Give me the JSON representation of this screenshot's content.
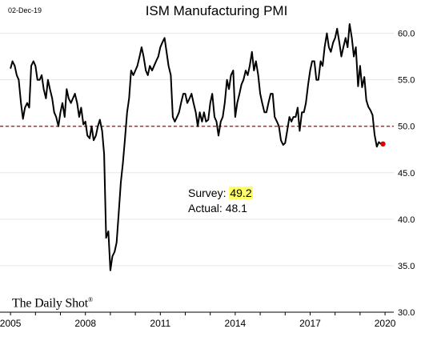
{
  "header": {
    "date": "02-Dec-19",
    "title": "ISM Manufacturing PMI"
  },
  "brand": {
    "name": "The Daily Shot",
    "mark": "®"
  },
  "annotation": {
    "survey_label": "Survey:",
    "survey_value": "49.2",
    "actual_label": "Actual:",
    "actual_value": "48.1"
  },
  "colors": {
    "line": "#000000",
    "threshold": "#c00000",
    "actual_dot": "#e00000",
    "highlight": "#ffff66"
  },
  "chart_data": {
    "type": "line",
    "title": "ISM Manufacturing PMI",
    "xlabel": "",
    "ylabel": "",
    "xlim": [
      2004.9,
      2020.35
    ],
    "ylim": [
      30,
      61
    ],
    "y_ticks": [
      "30.0",
      "35.0",
      "40.0",
      "45.0",
      "50.0",
      "55.0",
      "60.0"
    ],
    "x_ticks": [
      "2005",
      "2008",
      "2011",
      "2014",
      "2017",
      "2020"
    ],
    "reference_line": {
      "y": 50,
      "style": "dashed"
    },
    "actual_point": {
      "x": 2019.917,
      "y": 48.1
    },
    "series": [
      {
        "x": [
          2005.0,
          2005.08,
          2005.17,
          2005.25,
          2005.33,
          2005.42,
          2005.5,
          2005.58,
          2005.67,
          2005.75,
          2005.83,
          2005.92,
          2006.0,
          2006.08,
          2006.17,
          2006.25,
          2006.33,
          2006.42,
          2006.5,
          2006.58,
          2006.67,
          2006.75,
          2006.83,
          2006.92,
          2007.0,
          2007.08,
          2007.17,
          2007.25,
          2007.33,
          2007.42,
          2007.5,
          2007.58,
          2007.67,
          2007.75,
          2007.83,
          2007.92,
          2008.0,
          2008.08,
          2008.17,
          2008.25,
          2008.33,
          2008.42,
          2008.5,
          2008.58,
          2008.67,
          2008.75,
          2008.83,
          2008.92,
          2009.0,
          2009.08,
          2009.17,
          2009.25,
          2009.33,
          2009.42,
          2009.5,
          2009.58,
          2009.67,
          2009.75,
          2009.83,
          2009.92,
          2010.0,
          2010.08,
          2010.17,
          2010.25,
          2010.33,
          2010.42,
          2010.5,
          2010.58,
          2010.67,
          2010.75,
          2010.83,
          2010.92,
          2011.0,
          2011.08,
          2011.17,
          2011.25,
          2011.33,
          2011.42,
          2011.5,
          2011.58,
          2011.67,
          2011.75,
          2011.83,
          2011.92,
          2012.0,
          2012.08,
          2012.17,
          2012.25,
          2012.33,
          2012.42,
          2012.5,
          2012.58,
          2012.67,
          2012.75,
          2012.83,
          2012.92,
          2013.0,
          2013.08,
          2013.17,
          2013.25,
          2013.33,
          2013.42,
          2013.5,
          2013.58,
          2013.67,
          2013.75,
          2013.83,
          2013.92,
          2014.0,
          2014.08,
          2014.17,
          2014.25,
          2014.33,
          2014.42,
          2014.5,
          2014.58,
          2014.67,
          2014.75,
          2014.83,
          2014.92,
          2015.0,
          2015.08,
          2015.17,
          2015.25,
          2015.33,
          2015.42,
          2015.5,
          2015.58,
          2015.67,
          2015.75,
          2015.83,
          2015.92,
          2016.0,
          2016.08,
          2016.17,
          2016.25,
          2016.33,
          2016.42,
          2016.5,
          2016.58,
          2016.67,
          2016.75,
          2016.83,
          2016.92,
          2017.0,
          2017.08,
          2017.17,
          2017.25,
          2017.33,
          2017.42,
          2017.5,
          2017.58,
          2017.67,
          2017.75,
          2017.83,
          2017.92,
          2018.0,
          2018.08,
          2018.17,
          2018.25,
          2018.33,
          2018.42,
          2018.5,
          2018.58,
          2018.67,
          2018.75,
          2018.83,
          2018.92,
          2019.0,
          2019.08,
          2019.17,
          2019.25,
          2019.33,
          2019.42,
          2019.5,
          2019.58,
          2019.67,
          2019.75,
          2019.83
        ],
        "values": [
          56.2,
          57.0,
          56.5,
          55.5,
          55.0,
          52.5,
          50.8,
          52.0,
          52.5,
          52.0,
          56.5,
          57.0,
          56.5,
          55.0,
          55.0,
          55.5,
          54.0,
          53.0,
          55.0,
          54.0,
          53.0,
          51.5,
          51.0,
          50.0,
          51.5,
          52.5,
          51.0,
          54.0,
          53.0,
          52.5,
          53.0,
          53.5,
          52.5,
          51.0,
          52.0,
          50.2,
          50.5,
          49.0,
          48.7,
          50.0,
          48.5,
          49.0,
          50.0,
          50.7,
          49.5,
          47.0,
          38.0,
          38.7,
          34.5,
          36.0,
          36.5,
          37.5,
          40.5,
          44.0,
          46.0,
          48.5,
          51.5,
          53.0,
          56.0,
          55.5,
          56.0,
          56.5,
          57.5,
          58.5,
          57.5,
          56.0,
          55.5,
          56.5,
          56.0,
          56.5,
          57.0,
          57.5,
          58.5,
          59.0,
          59.5,
          58.0,
          56.5,
          55.5,
          51.0,
          50.5,
          51.0,
          51.5,
          52.5,
          53.5,
          53.5,
          52.5,
          53.0,
          53.5,
          52.5,
          51.5,
          50.0,
          51.5,
          50.5,
          51.5,
          50.5,
          50.7,
          52.5,
          53.5,
          51.0,
          50.5,
          49.0,
          50.5,
          51.0,
          52.5,
          55.0,
          54.0,
          55.5,
          56.0,
          51.0,
          52.5,
          53.5,
          54.5,
          55.0,
          56.0,
          55.5,
          56.5,
          58.0,
          56.0,
          57.0,
          55.5,
          53.5,
          52.5,
          51.5,
          51.5,
          52.5,
          53.5,
          53.5,
          51.0,
          50.5,
          50.0,
          48.5,
          48.0,
          48.2,
          49.5,
          51.0,
          50.5,
          51.0,
          51.0,
          52.0,
          49.5,
          51.5,
          51.5,
          52.5,
          54.5,
          56.0,
          57.0,
          57.0,
          55.0,
          55.0,
          57.0,
          56.5,
          58.5,
          60.0,
          58.5,
          58.0,
          59.0,
          59.5,
          60.5,
          59.0,
          57.5,
          58.5,
          59.5,
          58.5,
          61.0,
          59.5,
          57.5,
          58.5,
          54.3,
          56.5,
          54.2,
          55.3,
          52.8,
          52.1,
          51.7,
          51.2,
          49.1,
          47.8,
          48.3,
          48.1
        ]
      }
    ]
  }
}
